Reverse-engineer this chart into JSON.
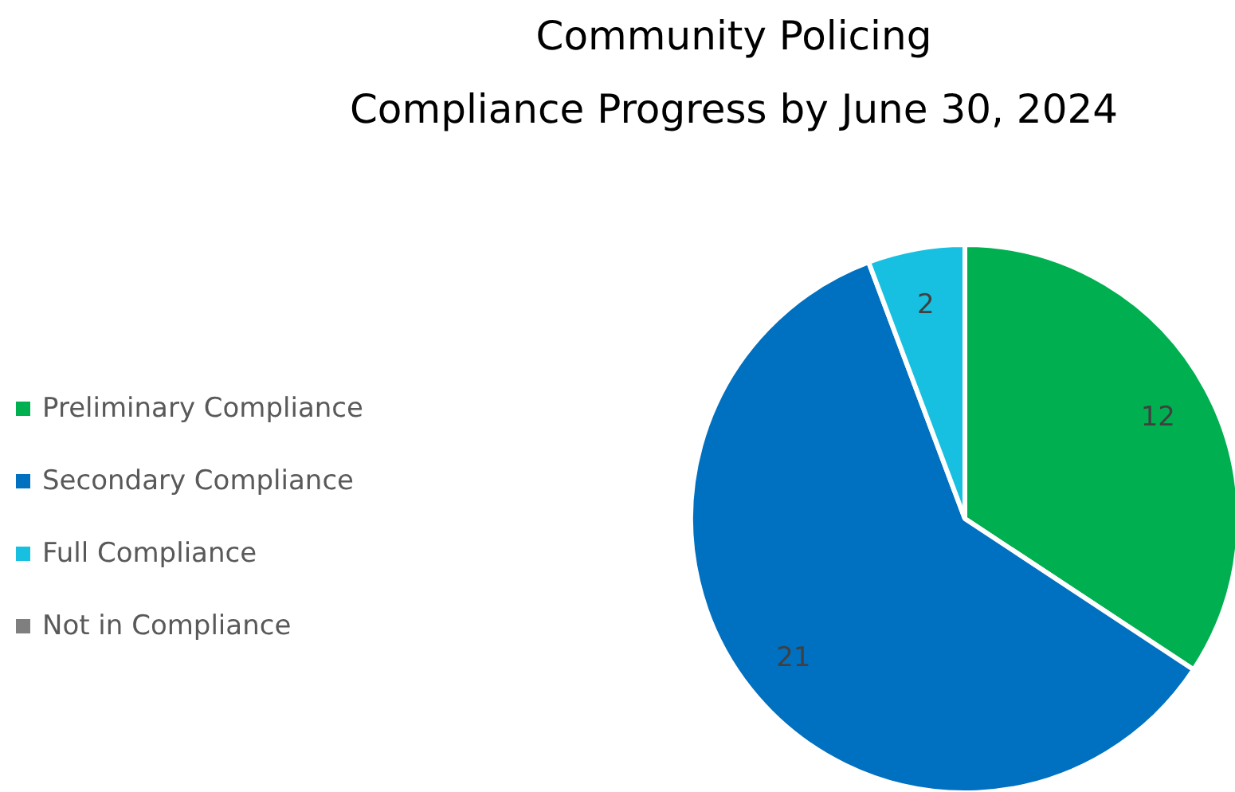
{
  "chart_data": {
    "type": "pie",
    "title": "Community Policing\nCompliance Progress by June 30, 2024",
    "categories": [
      "Preliminary Compliance",
      "Secondary Compliance",
      "Full Compliance",
      "Not in Compliance"
    ],
    "values": [
      12,
      21,
      2,
      0
    ],
    "colors": [
      "#00b050",
      "#0070c0",
      "#17c0e0",
      "#7f7f7f"
    ],
    "value_labels": [
      "12",
      "21",
      "2",
      null
    ],
    "legend": "left"
  }
}
